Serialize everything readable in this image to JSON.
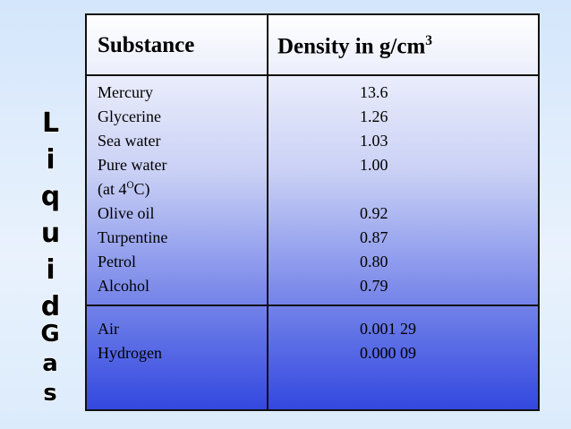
{
  "header": {
    "substance": "Substance",
    "density": {
      "text": "Density in g/cm",
      "sup": "3"
    }
  },
  "liquids": {
    "side_label": "Liquid",
    "rows": [
      {
        "substance": "Mercury",
        "density": "13.6"
      },
      {
        "substance": "Glycerine",
        "density": "1.26"
      },
      {
        "substance": "Sea water",
        "density": "1.03"
      },
      {
        "substance": "Pure water",
        "density": "1.00",
        "note": {
          "before": "(at 4",
          "sup": "O",
          "after": "C)"
        }
      },
      {
        "substance": "Olive oil",
        "density": "0.92"
      },
      {
        "substance": "Turpentine",
        "density": "0.87"
      },
      {
        "substance": "Petrol",
        "density": "0.80"
      },
      {
        "substance": "Alcohol",
        "density": "0.79"
      }
    ]
  },
  "gases": {
    "side_label": "Gas",
    "rows": [
      {
        "substance": "Air",
        "density": "0.001 29"
      },
      {
        "substance": "Hydrogen",
        "density": "0.000 09"
      }
    ]
  }
}
